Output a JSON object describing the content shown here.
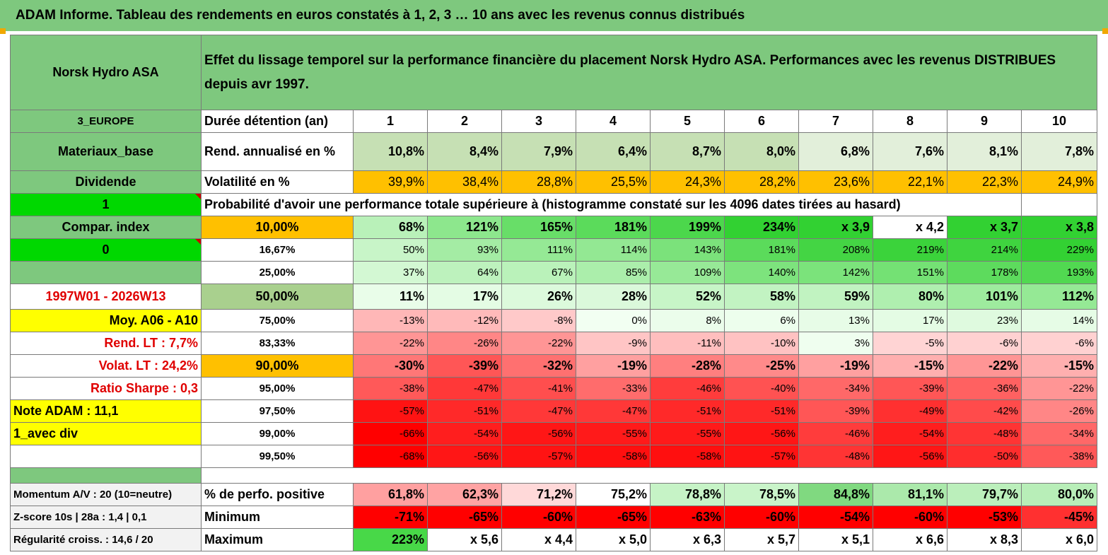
{
  "title": "ADAM Informe. Tableau des rendements en euros constatés à 1, 2, 3 … 10 ans avec les revenus connus distribués",
  "colors": {
    "header_green": "#7ec87e",
    "bright_green": "#00d800",
    "yellow": "#ffff00",
    "orange": "#ffc000",
    "light_green": "#c6e0b4",
    "red": "#ff0000"
  },
  "header": {
    "company": "Norsk Hydro ASA",
    "description": "Effet du lissage temporel sur la performance financière du placement Norsk Hydro ASA. Performances avec les revenus DISTRIBUES depuis avr 1997."
  },
  "side": {
    "region": "3_EUROPE",
    "sector": "Materiaux_base",
    "type": "Dividende",
    "flag1": "1",
    "compar": "Compar. index",
    "flag0": "0",
    "blank": "",
    "period": "1997W01 - 2026W13",
    "moy": "Moy. A06 - A10",
    "rend_lt": "Rend. LT :   7,7%",
    "volat_lt": "Volat. LT :   24,2%",
    "sharpe": "Ratio Sharpe :    0,3",
    "note": "Note ADAM : 11,1",
    "avec_div": "1_avec div"
  },
  "labels": {
    "duree": "Durée détention (an)",
    "rend": "Rend. annualisé en %",
    "vol": "Volatilité en %",
    "proba": "Probabilité d'avoir une performance totale supérieure à (histogramme constaté sur les 4096 dates tirées au hasard)"
  },
  "years": [
    "1",
    "2",
    "3",
    "4",
    "5",
    "6",
    "7",
    "8",
    "9",
    "10"
  ],
  "rend": [
    "10,8%",
    "8,4%",
    "7,9%",
    "6,4%",
    "8,7%",
    "8,0%",
    "6,8%",
    "7,6%",
    "8,1%",
    "7,8%"
  ],
  "vol": [
    "39,9%",
    "38,4%",
    "28,8%",
    "25,5%",
    "24,3%",
    "28,2%",
    "23,6%",
    "22,1%",
    "22,3%",
    "24,9%"
  ],
  "prob_rows": [
    {
      "p": "10,00%",
      "v": [
        "68%",
        "121%",
        "165%",
        "181%",
        "199%",
        "234%",
        "x 3,9",
        "x 4,2",
        "x 3,7",
        "x 3,8"
      ]
    },
    {
      "p": "16,67%",
      "v": [
        "50%",
        "93%",
        "111%",
        "114%",
        "143%",
        "181%",
        "208%",
        "219%",
        "214%",
        "229%"
      ]
    },
    {
      "p": "25,00%",
      "v": [
        "37%",
        "64%",
        "67%",
        "85%",
        "109%",
        "140%",
        "142%",
        "151%",
        "178%",
        "193%"
      ]
    },
    {
      "p": "50,00%",
      "v": [
        "11%",
        "17%",
        "26%",
        "28%",
        "52%",
        "58%",
        "59%",
        "80%",
        "101%",
        "112%"
      ]
    },
    {
      "p": "75,00%",
      "v": [
        "-13%",
        "-12%",
        "-8%",
        "0%",
        "8%",
        "6%",
        "13%",
        "17%",
        "23%",
        "14%"
      ]
    },
    {
      "p": "83,33%",
      "v": [
        "-22%",
        "-26%",
        "-22%",
        "-9%",
        "-11%",
        "-10%",
        "3%",
        "-5%",
        "-6%",
        "-6%"
      ]
    },
    {
      "p": "90,00%",
      "v": [
        "-30%",
        "-39%",
        "-32%",
        "-19%",
        "-28%",
        "-25%",
        "-19%",
        "-15%",
        "-22%",
        "-15%"
      ]
    },
    {
      "p": "95,00%",
      "v": [
        "-38%",
        "-47%",
        "-41%",
        "-33%",
        "-46%",
        "-40%",
        "-34%",
        "-39%",
        "-36%",
        "-22%"
      ]
    },
    {
      "p": "97,50%",
      "v": [
        "-57%",
        "-51%",
        "-47%",
        "-47%",
        "-51%",
        "-51%",
        "-39%",
        "-49%",
        "-42%",
        "-26%"
      ]
    },
    {
      "p": "99,00%",
      "v": [
        "-66%",
        "-54%",
        "-56%",
        "-55%",
        "-55%",
        "-56%",
        "-46%",
        "-54%",
        "-48%",
        "-34%"
      ]
    },
    {
      "p": "99,50%",
      "v": [
        "-68%",
        "-56%",
        "-57%",
        "-58%",
        "-58%",
        "-57%",
        "-48%",
        "-56%",
        "-50%",
        "-38%"
      ]
    }
  ],
  "bottom": [
    {
      "side": "Momentum A/V : 20 (10=neutre)",
      "label": "% de perfo. positive",
      "v": [
        "61,8%",
        "62,3%",
        "71,2%",
        "75,2%",
        "78,8%",
        "78,5%",
        "84,8%",
        "81,1%",
        "79,7%",
        "80,0%"
      ]
    },
    {
      "side": "Z-score 10s | 28a : 1,4 | 0,1",
      "label": "Minimum",
      "v": [
        "-71%",
        "-65%",
        "-60%",
        "-65%",
        "-63%",
        "-60%",
        "-54%",
        "-60%",
        "-53%",
        "-45%"
      ]
    },
    {
      "side": "Régularité croiss. : 14,6 / 20",
      "label": "Maximum",
      "v": [
        "223%",
        "x 5,6",
        "x 4,4",
        "x 5,0",
        "x 6,3",
        "x 5,7",
        "x 5,1",
        "x 6,6",
        "x 8,3",
        "x 6,0"
      ]
    }
  ]
}
